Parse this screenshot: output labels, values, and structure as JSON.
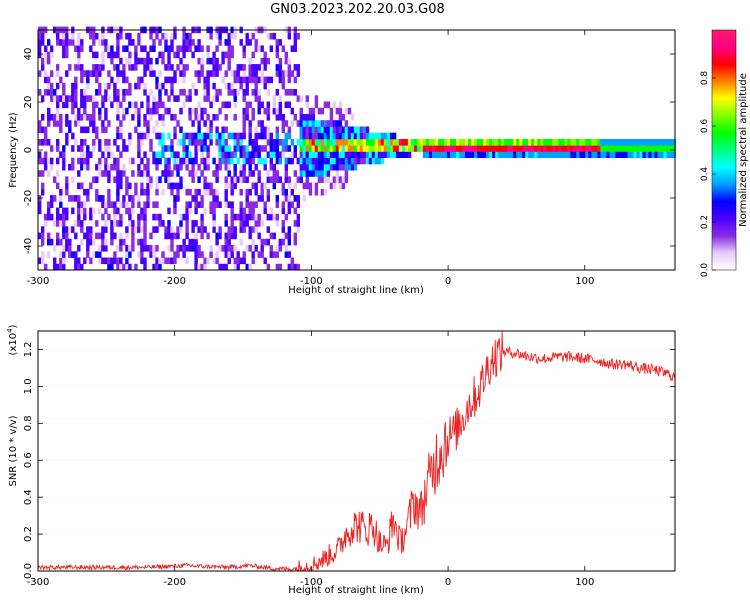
{
  "title": "GN03.2023.202.20.03.G08",
  "chart_data": [
    {
      "type": "heatmap",
      "xlabel": "Height of straight line (km)",
      "ylabel": "Frequency (Hz)",
      "xlim": [
        -300,
        166
      ],
      "ylim": [
        -50,
        50
      ],
      "xticks": [
        -300,
        -200,
        -100,
        0,
        100
      ],
      "yticks": [
        -40,
        -20,
        0,
        20,
        40
      ],
      "colorbar": {
        "label": "Normalized spectral amplitude",
        "range": [
          0,
          1
        ],
        "ticks": [
          "0.0",
          "0.2",
          "0.4",
          "0.6",
          "0.8"
        ],
        "colors": [
          "#ffffff",
          "#e6cdf7",
          "#8a2be2",
          "#4b00ff",
          "#0000ff",
          "#00a0ff",
          "#00ffff",
          "#00ff80",
          "#00ff00",
          "#80ff00",
          "#ffff00",
          "#ff8000",
          "#ff0000",
          "#ff0080",
          "#ff1a6e"
        ]
      },
      "features": {
        "carrier_frequency_hz": 0,
        "noise_region_x": [
          -300,
          -110
        ],
        "transition_x": [
          -110,
          -20
        ],
        "strong_carrier_x": [
          -20,
          110
        ]
      }
    },
    {
      "type": "line",
      "xlabel": "Height of straight line (km)",
      "ylabel": "SNR (10 * v/v)",
      "yscale_label": "(x10",
      "yscale_exp": "4",
      "yscale_close": ")",
      "xlim": [
        -300,
        166
      ],
      "ylim": [
        0,
        1.3
      ],
      "xticks": [
        -300,
        -200,
        -100,
        0,
        100
      ],
      "yticks": [
        0.0,
        0.2,
        0.4,
        0.6,
        0.8,
        1.0,
        1.2
      ],
      "series": [
        {
          "color": "#ee2222",
          "x": [
            -300,
            -260,
            -220,
            -190,
            -180,
            -160,
            -145,
            -130,
            -115,
            -100,
            -90,
            -80,
            -75,
            -70,
            -65,
            -60,
            -55,
            -50,
            -45,
            -40,
            -35,
            -30,
            -25,
            -20,
            -15,
            -10,
            -5,
            0,
            5,
            10,
            15,
            20,
            25,
            30,
            35,
            40,
            50,
            60,
            70,
            80,
            90,
            100,
            110,
            120,
            130,
            140,
            150,
            160,
            166
          ],
          "values": [
            0.02,
            0.02,
            0.02,
            0.03,
            0.025,
            0.02,
            0.03,
            0.015,
            0.01,
            0.03,
            0.07,
            0.12,
            0.2,
            0.24,
            0.25,
            0.22,
            0.25,
            0.15,
            0.13,
            0.28,
            0.15,
            0.24,
            0.38,
            0.32,
            0.46,
            0.58,
            0.68,
            0.73,
            0.75,
            0.82,
            0.9,
            0.95,
            1.02,
            1.12,
            1.17,
            1.19,
            1.18,
            1.16,
            1.15,
            1.16,
            1.16,
            1.15,
            1.14,
            1.12,
            1.12,
            1.1,
            1.09,
            1.07,
            1.05
          ]
        }
      ]
    }
  ]
}
